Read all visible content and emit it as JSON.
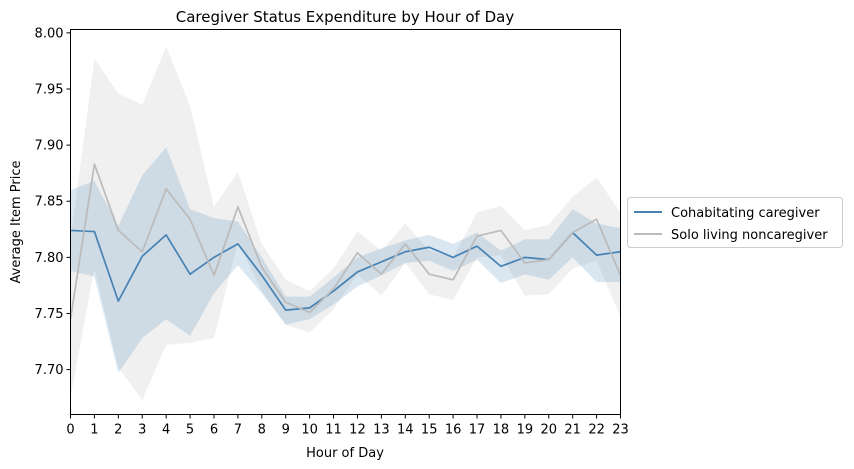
{
  "chart_data": {
    "type": "line",
    "title": "Caregiver Status Expenditure by Hour of Day",
    "xlabel": "Hour of Day",
    "ylabel": "Average Item Price",
    "xlim": [
      0,
      23
    ],
    "ylim": [
      7.66,
      8.003
    ],
    "x": [
      0,
      1,
      2,
      3,
      4,
      5,
      6,
      7,
      8,
      9,
      10,
      11,
      12,
      13,
      14,
      15,
      16,
      17,
      18,
      19,
      20,
      21,
      22,
      23
    ],
    "x_tick_labels": [
      "0",
      "1",
      "2",
      "3",
      "4",
      "5",
      "6",
      "7",
      "8",
      "9",
      "10",
      "11",
      "12",
      "13",
      "14",
      "15",
      "16",
      "17",
      "18",
      "19",
      "20",
      "21",
      "22",
      "23"
    ],
    "y_ticks": [
      7.7,
      7.75,
      7.8,
      7.85,
      7.9,
      7.95,
      8.0
    ],
    "y_tick_labels": [
      "7.70",
      "7.75",
      "7.80",
      "7.85",
      "7.90",
      "7.95",
      "8.00"
    ],
    "grid": false,
    "legend_position": "right-outside",
    "series": [
      {
        "name": "Cohabitating caregiver",
        "color": "#4682b4",
        "values": [
          7.824,
          7.823,
          7.761,
          7.801,
          7.82,
          7.785,
          7.8,
          7.812,
          7.784,
          7.753,
          7.755,
          7.77,
          7.787,
          7.796,
          7.805,
          7.809,
          7.8,
          7.81,
          7.792,
          7.8,
          7.798,
          7.822,
          7.802,
          7.805
        ],
        "ci_upper": [
          7.86,
          7.868,
          7.828,
          7.873,
          7.898,
          7.843,
          7.835,
          7.832,
          7.8,
          7.765,
          7.765,
          7.782,
          7.8,
          7.808,
          7.815,
          7.82,
          7.812,
          7.822,
          7.806,
          7.816,
          7.816,
          7.843,
          7.83,
          7.826
        ],
        "ci_lower": [
          7.788,
          7.783,
          7.697,
          7.728,
          7.745,
          7.73,
          7.768,
          7.793,
          7.768,
          7.74,
          7.745,
          7.758,
          7.774,
          7.784,
          7.795,
          7.797,
          7.788,
          7.798,
          7.777,
          7.785,
          7.78,
          7.8,
          7.778,
          7.778
        ]
      },
      {
        "name": "Solo living noncaregiver",
        "color": "#bbbbbb",
        "values": [
          7.745,
          7.883,
          7.824,
          7.805,
          7.861,
          7.834,
          7.784,
          7.845,
          7.791,
          7.76,
          7.751,
          7.772,
          7.804,
          7.785,
          7.812,
          7.785,
          7.78,
          7.819,
          7.824,
          7.795,
          7.798,
          7.822,
          7.834,
          7.784
        ],
        "ci_upper": [
          7.815,
          7.977,
          7.946,
          7.936,
          7.988,
          7.935,
          7.845,
          7.876,
          7.812,
          7.78,
          7.77,
          7.79,
          7.823,
          7.806,
          7.83,
          7.806,
          7.8,
          7.84,
          7.846,
          7.824,
          7.829,
          7.854,
          7.871,
          7.84
        ],
        "ci_lower": [
          7.675,
          7.79,
          7.702,
          7.673,
          7.722,
          7.724,
          7.728,
          7.814,
          7.77,
          7.74,
          7.733,
          7.754,
          7.785,
          7.766,
          7.795,
          7.767,
          7.762,
          7.8,
          7.802,
          7.766,
          7.767,
          7.79,
          7.797,
          7.747
        ]
      }
    ]
  }
}
